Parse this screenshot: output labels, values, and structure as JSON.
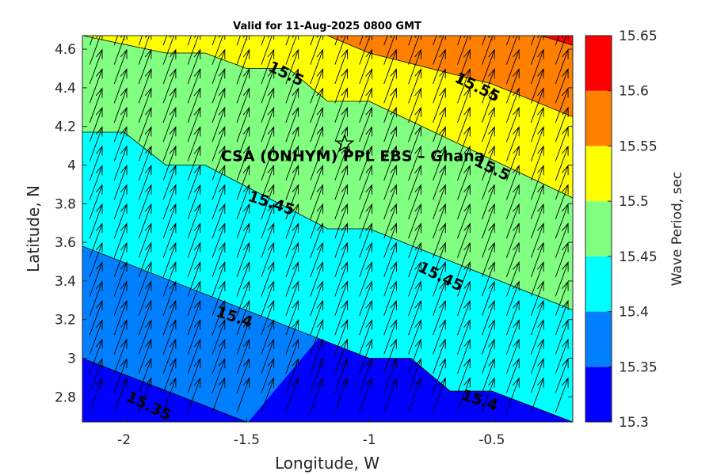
{
  "chart_data": {
    "type": "filled-contour",
    "title": "Valid for 11-Aug-2025 0800 GMT",
    "xlabel": "Longitude, W",
    "ylabel": "Latitude, N",
    "xlim": [
      -2.17,
      -0.17
    ],
    "ylim": [
      2.67,
      4.67
    ],
    "xticks": [
      -2,
      -1.5,
      -1,
      -0.5
    ],
    "xtick_labels": [
      "-2",
      "-1.5",
      "-1",
      "-0.5"
    ],
    "yticks": [
      2.8,
      3.0,
      3.2,
      3.4,
      3.6,
      3.8,
      4.0,
      4.2,
      4.4,
      4.6
    ],
    "ytick_labels": [
      "2.8",
      "3",
      "3.2",
      "3.4",
      "3.6",
      "3.8",
      "4",
      "4.2",
      "4.4",
      "4.6"
    ],
    "colorbar": {
      "label": "Wave Period, sec",
      "levels": [
        15.3,
        15.35,
        15.4,
        15.45,
        15.5,
        15.55,
        15.6,
        15.65
      ],
      "level_labels": [
        "15.3",
        "15.35",
        "15.4",
        "15.45",
        "15.5",
        "15.55",
        "15.6",
        "15.65"
      ],
      "colors": [
        "#0000ff",
        "#0080ff",
        "#00ffff",
        "#80ff80",
        "#ffff00",
        "#ff8000",
        "#ff0000"
      ]
    },
    "contours": [
      {
        "level": 15.35,
        "points": [
          [
            -2.17,
            3.0
          ],
          [
            -1.5,
            2.67
          ]
        ]
      },
      {
        "level": 15.4,
        "points": [
          [
            -2.17,
            3.58
          ],
          [
            -1.0,
            3.0
          ],
          [
            -0.83,
            3.0
          ],
          [
            -0.67,
            2.83
          ],
          [
            -0.5,
            2.83
          ],
          [
            -0.17,
            2.67
          ]
        ]
      },
      {
        "level": 15.45,
        "points": [
          [
            -2.17,
            4.17
          ],
          [
            -2.0,
            4.17
          ],
          [
            -1.83,
            4.0
          ],
          [
            -1.67,
            4.0
          ],
          [
            -1.17,
            3.67
          ],
          [
            -1.0,
            3.67
          ],
          [
            -0.17,
            3.25
          ]
        ]
      },
      {
        "level": 15.5,
        "points": [
          [
            -2.17,
            4.67
          ],
          [
            -1.83,
            4.58
          ],
          [
            -1.67,
            4.58
          ],
          [
            -1.5,
            4.5
          ],
          [
            -1.33,
            4.5
          ],
          [
            -1.17,
            4.33
          ],
          [
            -1.0,
            4.33
          ],
          [
            -0.17,
            3.83
          ]
        ]
      },
      {
        "level": 15.55,
        "points": [
          [
            -1.33,
            4.67
          ],
          [
            -1.17,
            4.67
          ],
          [
            -1.0,
            4.58
          ],
          [
            -0.5,
            4.42
          ],
          [
            -0.17,
            4.25
          ]
        ]
      },
      {
        "level": 15.6,
        "points": [
          [
            -0.3,
            4.67
          ],
          [
            -0.17,
            4.62
          ]
        ]
      }
    ],
    "contour_labels": [
      {
        "text": "15.5",
        "lon": -1.34,
        "lat": 4.47,
        "angle": 26
      },
      {
        "text": "15.55",
        "lon": -0.56,
        "lat": 4.4,
        "angle": 26
      },
      {
        "text": "15.5",
        "lon": -0.5,
        "lat": 3.98,
        "angle": 26
      },
      {
        "text": "15.45",
        "lon": -1.4,
        "lat": 3.8,
        "angle": 18
      },
      {
        "text": "15.45",
        "lon": -0.71,
        "lat": 3.42,
        "angle": 26
      },
      {
        "text": "15.4",
        "lon": -1.55,
        "lat": 3.21,
        "angle": 18
      },
      {
        "text": "15.4",
        "lon": -0.55,
        "lat": 2.78,
        "angle": 18
      },
      {
        "text": "15.35",
        "lon": -1.9,
        "lat": 2.75,
        "angle": 26
      }
    ],
    "vectors": {
      "direction_deg_from_north": 20,
      "lon_start": -2.14,
      "lon_step": 0.1,
      "lat_start": 2.72,
      "lat_step": 0.1
    },
    "site": {
      "name": "CSA (ONHYM) PPL EBS  – Ghana",
      "lon": -1.1,
      "lat": 4.11
    },
    "grid": false
  }
}
